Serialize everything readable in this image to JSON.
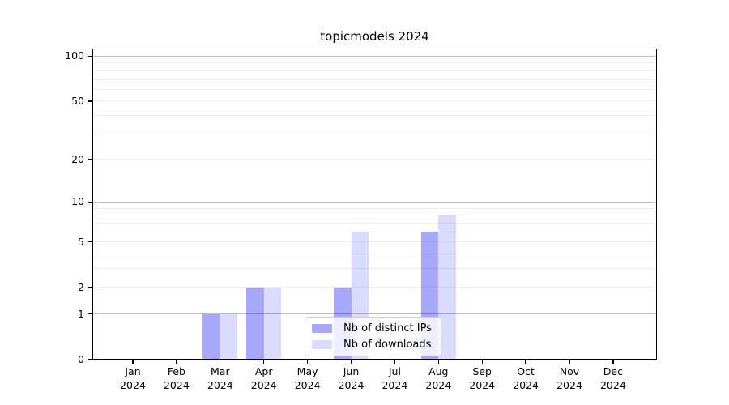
{
  "chart_data": {
    "type": "bar",
    "title": "topicmodels 2024",
    "categories": [
      "Jan 2024",
      "Feb 2024",
      "Mar 2024",
      "Apr 2024",
      "May 2024",
      "Jun 2024",
      "Jul 2024",
      "Aug 2024",
      "Sep 2024",
      "Oct 2024",
      "Nov 2024",
      "Dec 2024"
    ],
    "series": [
      {
        "name": "Nb of distinct IPs",
        "values": [
          0,
          0,
          1,
          2,
          0,
          2,
          0,
          6,
          0,
          0,
          0,
          0
        ],
        "color": "rgba(0,0,240,0.34)",
        "apparent_color": "#a9a9f8"
      },
      {
        "name": "Nb of downloads",
        "values": [
          0,
          0,
          1,
          2,
          0,
          6,
          0,
          8,
          0,
          0,
          0,
          0
        ],
        "color": "rgba(0,0,240,0.14)",
        "apparent_color": "#dcdcfa"
      }
    ],
    "xlabel": "",
    "ylabel": "",
    "yscale": "log1p",
    "ylim": [
      0,
      112.5
    ],
    "yticks": [
      0,
      1,
      2,
      5,
      10,
      20,
      50,
      100
    ],
    "major_gridlines": [
      1,
      10,
      100
    ],
    "minor_gridlines": [
      2,
      3,
      4,
      5,
      6,
      7,
      8,
      9,
      20,
      30,
      40,
      50,
      60,
      70,
      80,
      90
    ],
    "grid": true,
    "legend_position": "lower center inside plot"
  },
  "colors": {
    "major_grid": "#bdbdbd",
    "minor_grid": "#ededed",
    "spine": "#000000",
    "background": "#ffffff"
  }
}
